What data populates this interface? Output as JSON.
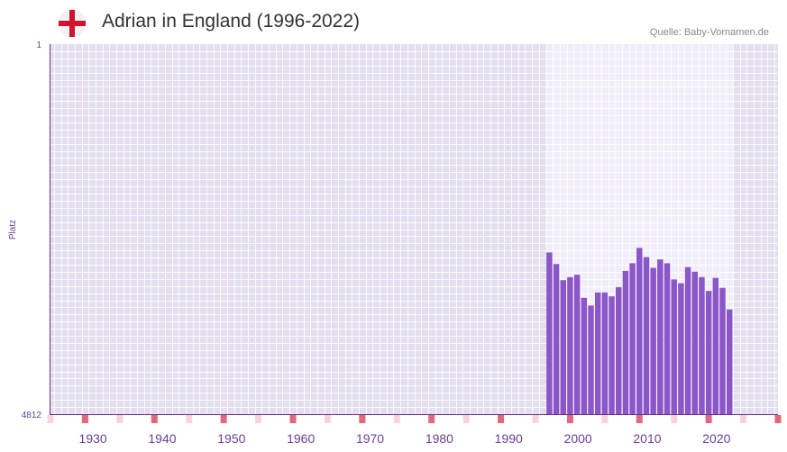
{
  "header": {
    "title": "Adrian in England (1996-2022)",
    "source": "Quelle: Baby-Vornamen.de",
    "flag_icon": "england-flag-icon"
  },
  "colors": {
    "bar": "#8a56c8",
    "axis": "#6a2a8a",
    "label": "#6a3f99",
    "plot_bg": "#e3dff0",
    "plot_bg_light": "#f1eefa",
    "marker_strong": "#e06a7c",
    "marker_light": "#f7d4da",
    "flag_red": "#cf142b"
  },
  "chart_data": {
    "type": "bar",
    "title": "Adrian in England (1996-2022)",
    "ylabel": "Platz",
    "xlabel": "",
    "y_axis_inverted": true,
    "ylim": [
      1,
      4812
    ],
    "y_tick_labels": [
      "1",
      "4812"
    ],
    "xlim": [
      1924,
      2029
    ],
    "x_ticks": [
      1930,
      1940,
      1950,
      1960,
      1970,
      1980,
      1990,
      2000,
      2010,
      2020
    ],
    "highlight_range": [
      1996,
      2022
    ],
    "x": [
      1996,
      1997,
      1998,
      1999,
      2000,
      2001,
      2002,
      2003,
      2004,
      2005,
      2006,
      2007,
      2008,
      2009,
      2010,
      2011,
      2012,
      2013,
      2014,
      2015,
      2016,
      2017,
      2018,
      2019,
      2020,
      2021,
      2022
    ],
    "ranks": [
      2710,
      2860,
      3070,
      3030,
      3000,
      3300,
      3400,
      3230,
      3230,
      3280,
      3160,
      2950,
      2850,
      2650,
      2770,
      2910,
      2800,
      2850,
      3060,
      3110,
      2900,
      2960,
      3030,
      3210,
      3040,
      3170,
      3450
    ]
  }
}
